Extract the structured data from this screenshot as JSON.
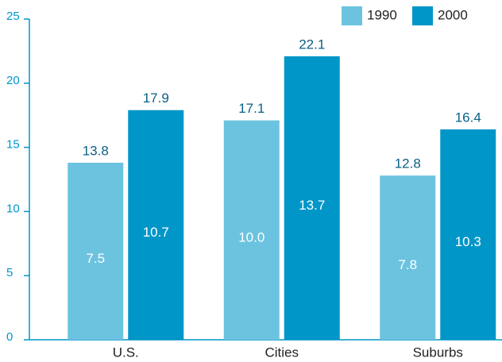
{
  "chart_data": {
    "type": "bar",
    "categories": [
      "U.S.",
      "Cities",
      "Suburbs"
    ],
    "series": [
      {
        "name": "1990",
        "color": "#6cc3e0",
        "values": [
          13.8,
          17.1,
          12.8
        ],
        "inner_labels": [
          "7.5",
          "10.0",
          "7.8"
        ]
      },
      {
        "name": "2000",
        "color": "#0096c8",
        "values": [
          17.9,
          22.1,
          16.4
        ],
        "inner_labels": [
          "10.7",
          "13.7",
          "10.3"
        ]
      }
    ],
    "ylim": [
      0,
      25
    ],
    "yticks": [
      0,
      5,
      10,
      15,
      20,
      25
    ],
    "legend": "top-right"
  }
}
